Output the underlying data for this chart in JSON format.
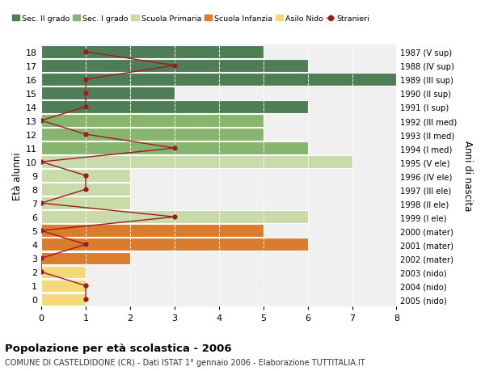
{
  "ages": [
    18,
    17,
    16,
    15,
    14,
    13,
    12,
    11,
    10,
    9,
    8,
    7,
    6,
    5,
    4,
    3,
    2,
    1,
    0
  ],
  "years": [
    "1987 (V sup)",
    "1988 (IV sup)",
    "1989 (III sup)",
    "1990 (II sup)",
    "1991 (I sup)",
    "1992 (III med)",
    "1993 (II med)",
    "1994 (I med)",
    "1995 (V ele)",
    "1996 (IV ele)",
    "1997 (III ele)",
    "1998 (II ele)",
    "1999 (I ele)",
    "2000 (mater)",
    "2001 (mater)",
    "2002 (mater)",
    "2003 (nido)",
    "2004 (nido)",
    "2005 (nido)"
  ],
  "bar_values": [
    5,
    6,
    8,
    3,
    6,
    5,
    5,
    6,
    7,
    2,
    2,
    2,
    6,
    5,
    6,
    2,
    1,
    1,
    1
  ],
  "bar_colors": [
    "#4e7d56",
    "#4e7d56",
    "#4e7d56",
    "#4e7d56",
    "#4e7d56",
    "#88b56e",
    "#88b56e",
    "#88b56e",
    "#c8dba8",
    "#c8dba8",
    "#c8dba8",
    "#c8dba8",
    "#c8dba8",
    "#d97c2e",
    "#d97c2e",
    "#d97c2e",
    "#f5d878",
    "#f5d878",
    "#f5d878"
  ],
  "stranieri_values": [
    1,
    3,
    1,
    1,
    1,
    0,
    1,
    3,
    0,
    1,
    1,
    0,
    3,
    0,
    1,
    0,
    0,
    1,
    1
  ],
  "title": "Popolazione per età scolastica - 2006",
  "subtitle": "COMUNE DI CASTELDIDONE (CR) - Dati ISTAT 1° gennaio 2006 - Elaborazione TUTTITALIA.IT",
  "ylabel_left": "Età alunni",
  "ylabel_right": "Anni di nascita",
  "xlim": [
    0,
    8
  ],
  "legend_labels": [
    "Sec. II grado",
    "Sec. I grado",
    "Scuola Primaria",
    "Scuola Infanzia",
    "Asilo Nido",
    "Stranieri"
  ],
  "legend_colors": [
    "#4e7d56",
    "#88b56e",
    "#c8dba8",
    "#d97c2e",
    "#f5d878",
    "#9b1c1c"
  ],
  "stranieri_color": "#9b1c1c",
  "grid_color": "#cccccc",
  "bg_color": "#f0f0f0"
}
